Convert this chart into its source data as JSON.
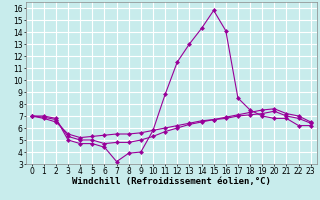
{
  "xlabel": "Windchill (Refroidissement éolien,°C)",
  "background_color": "#c8ecec",
  "line_color": "#990099",
  "grid_color": "#ffffff",
  "xlim": [
    -0.5,
    23.5
  ],
  "ylim": [
    3,
    16.5
  ],
  "xticks": [
    0,
    1,
    2,
    3,
    4,
    5,
    6,
    7,
    8,
    9,
    10,
    11,
    12,
    13,
    14,
    15,
    16,
    17,
    18,
    19,
    20,
    21,
    22,
    23
  ],
  "yticks": [
    3,
    4,
    5,
    6,
    7,
    8,
    9,
    10,
    11,
    12,
    13,
    14,
    15,
    16
  ],
  "line1_x": [
    0,
    1,
    2,
    3,
    4,
    5,
    6,
    7,
    8,
    9,
    10,
    11,
    12,
    13,
    14,
    15,
    16,
    17,
    18,
    19,
    20,
    21,
    22,
    23
  ],
  "line1_y": [
    7.0,
    7.0,
    6.8,
    5.0,
    4.7,
    4.7,
    4.4,
    3.2,
    3.9,
    4.0,
    5.8,
    8.8,
    11.5,
    13.0,
    14.3,
    15.8,
    14.1,
    8.5,
    7.5,
    7.0,
    6.8,
    6.8,
    6.2,
    6.2
  ],
  "line2_x": [
    0,
    1,
    2,
    3,
    4,
    5,
    6,
    7,
    8,
    9,
    10,
    11,
    12,
    13,
    14,
    15,
    16,
    17,
    18,
    19,
    20,
    21,
    22,
    23
  ],
  "line2_y": [
    7.0,
    6.8,
    6.5,
    5.5,
    5.2,
    5.3,
    5.4,
    5.5,
    5.5,
    5.6,
    5.8,
    6.0,
    6.2,
    6.4,
    6.6,
    6.7,
    6.9,
    7.1,
    7.3,
    7.5,
    7.6,
    7.2,
    7.0,
    6.5
  ],
  "line3_x": [
    0,
    1,
    2,
    3,
    4,
    5,
    6,
    7,
    8,
    9,
    10,
    11,
    12,
    13,
    14,
    15,
    16,
    17,
    18,
    19,
    20,
    21,
    22,
    23
  ],
  "line3_y": [
    7.0,
    6.9,
    6.7,
    5.3,
    5.0,
    5.0,
    4.7,
    4.8,
    4.8,
    5.0,
    5.3,
    5.7,
    6.0,
    6.3,
    6.5,
    6.7,
    6.8,
    7.0,
    7.1,
    7.2,
    7.4,
    7.0,
    6.8,
    6.4
  ],
  "tick_fontsize": 5.5,
  "xlabel_fontsize": 6.5,
  "markersize": 2.5,
  "linewidth": 0.8
}
